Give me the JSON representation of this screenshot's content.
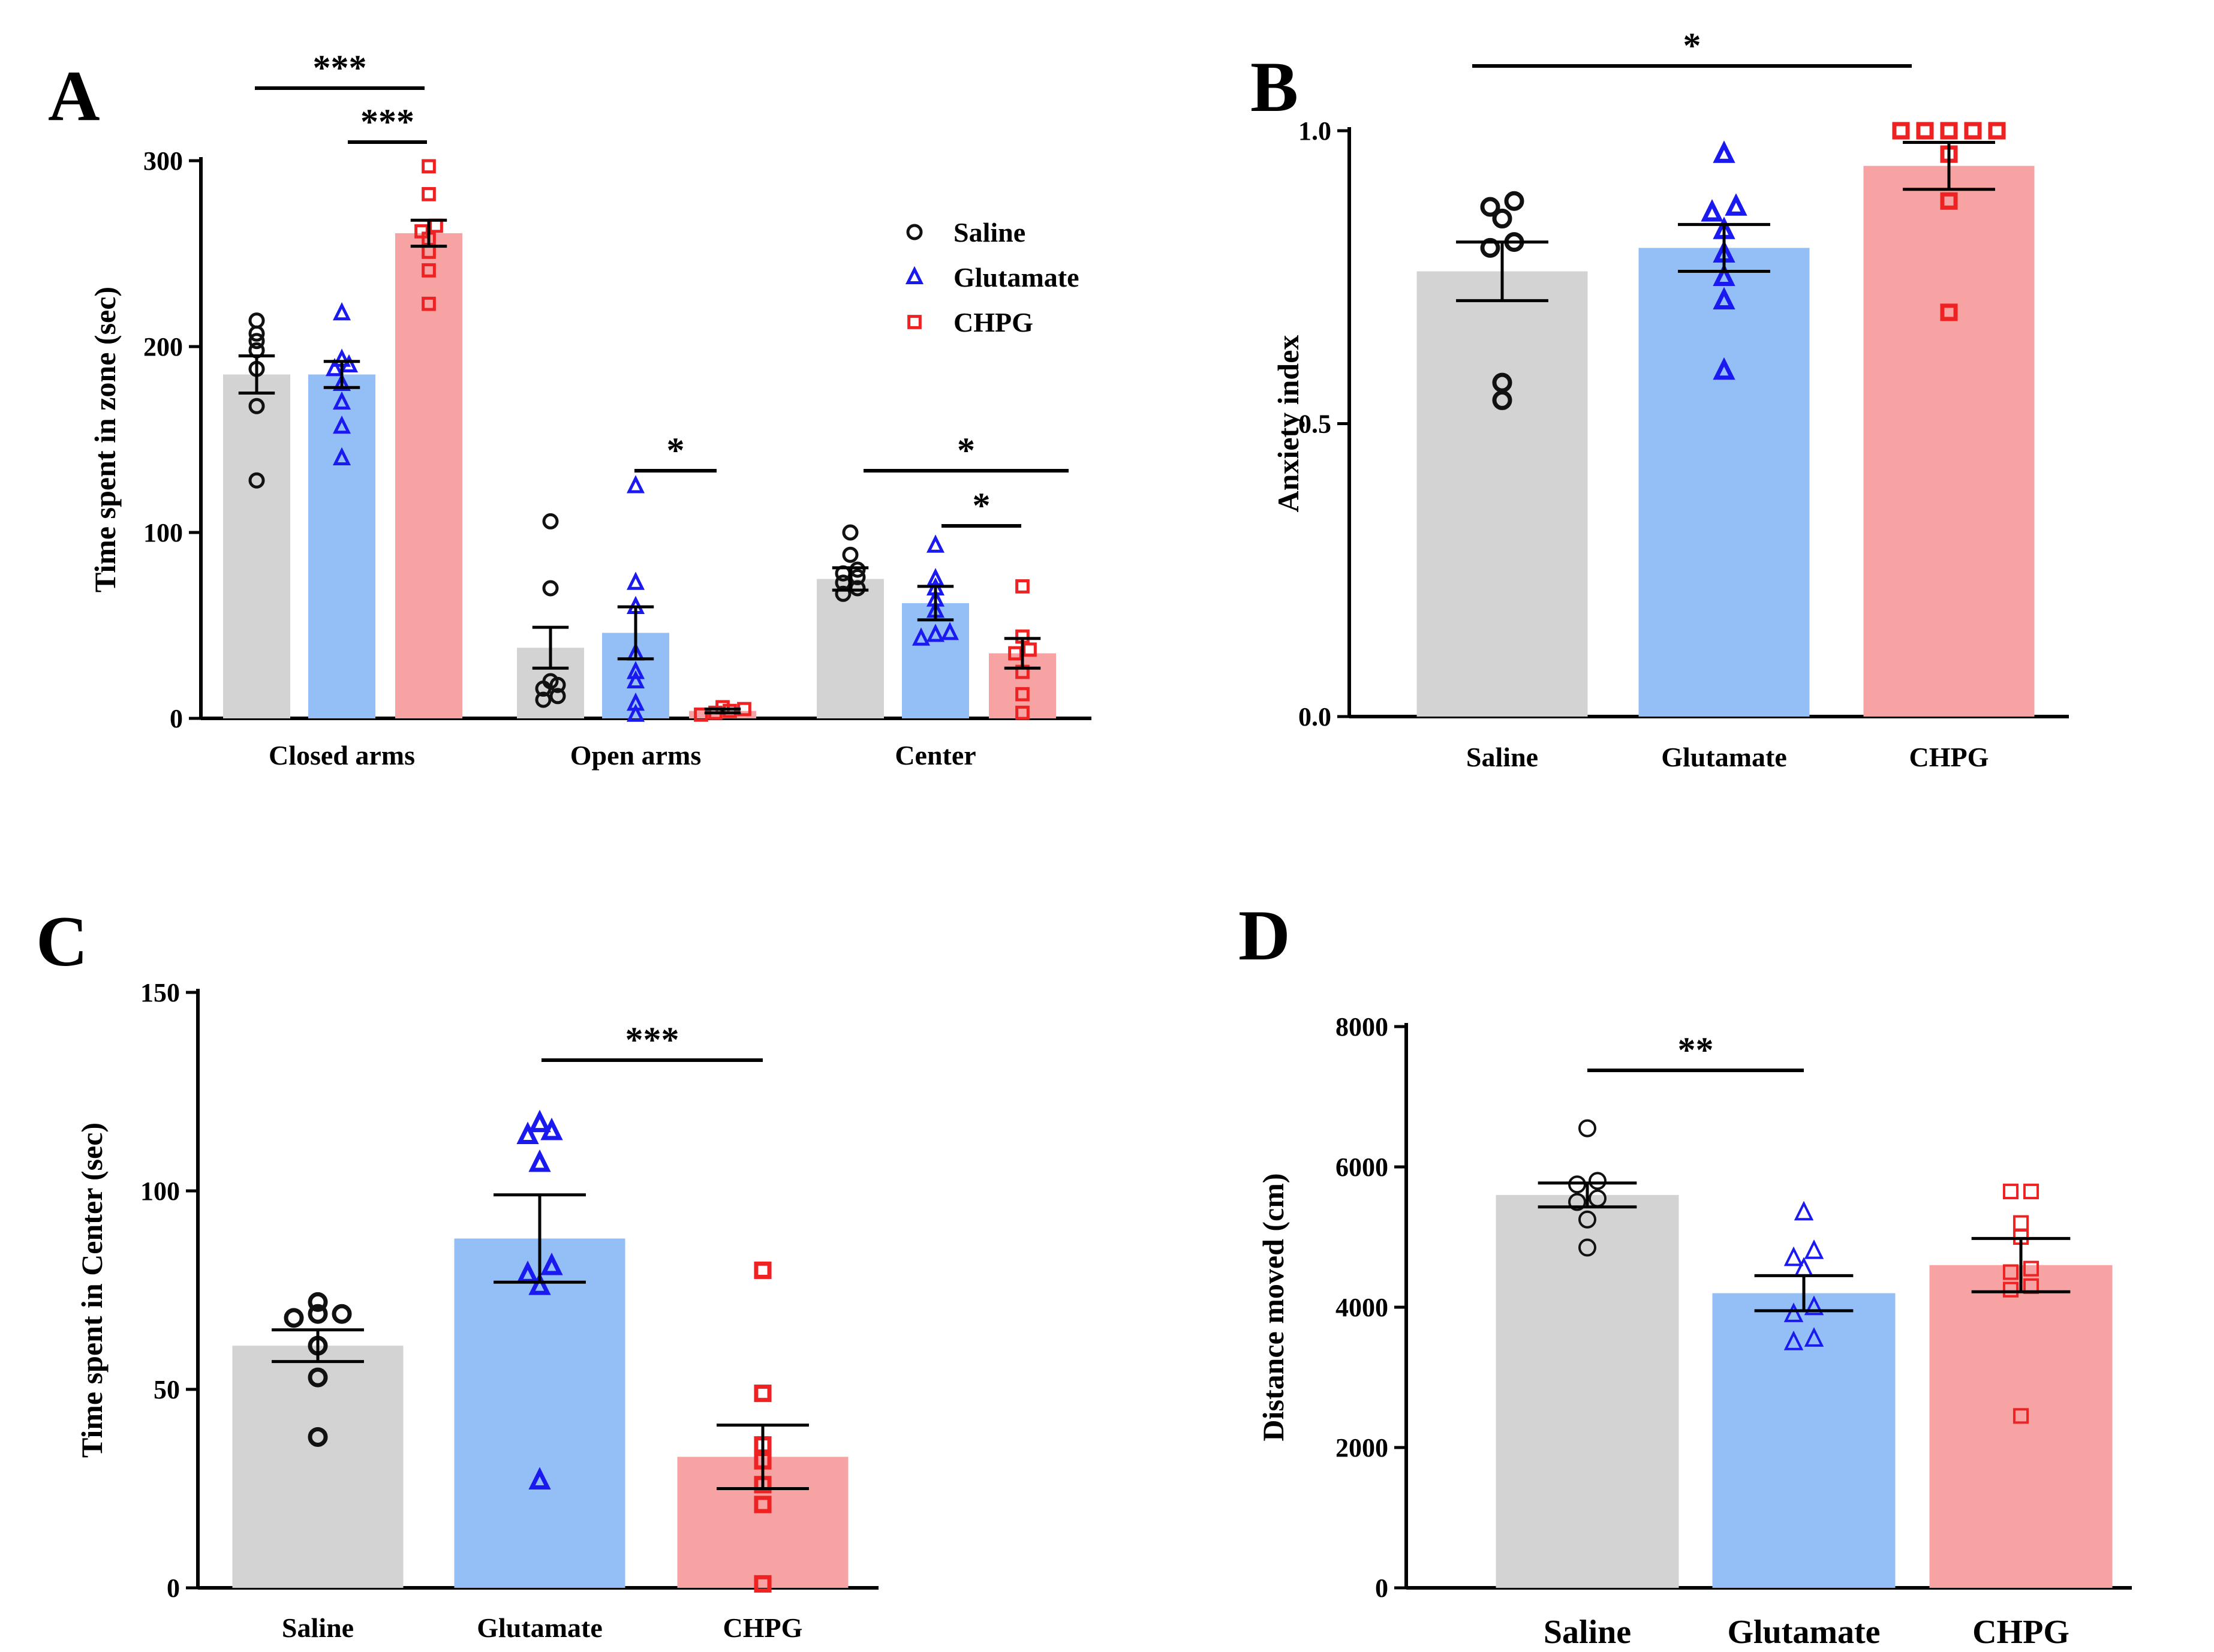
{
  "colors": {
    "Saline": {
      "fill": "#d3d3d3",
      "marker": "#111111"
    },
    "Glutamate": {
      "fill": "#93bff6",
      "marker": "#1a1af0"
    },
    "CHPG": {
      "fill": "#f8a3a3",
      "marker": "#ee2222"
    }
  },
  "chart_data": [
    {
      "panel": "A",
      "type": "bar",
      "ylabel": "Time spent in zone (sec)",
      "ylim": [
        0,
        300
      ],
      "yticks": [
        "0",
        "100",
        "200",
        "300"
      ],
      "categories": [
        "Closed arms",
        "Open arms",
        "Center"
      ],
      "legend": [
        "Saline",
        "Glutamate",
        "CHPG"
      ],
      "series": [
        {
          "name": "Saline",
          "marker": "circle",
          "values": [
            185,
            38,
            75
          ],
          "sem": [
            10,
            11,
            6
          ],
          "points": [
            [
              128,
              168,
              188,
              198,
              203,
              207,
              214
            ],
            [
              10,
              12,
              16,
              18,
              20,
              70,
              106
            ],
            [
              67,
              70,
              73,
              76,
              78,
              80,
              88,
              100
            ]
          ]
        },
        {
          "name": "Glutamate",
          "marker": "triangle",
          "values": [
            185,
            46,
            62
          ],
          "sem": [
            7,
            14,
            9
          ],
          "points": [
            [
              140,
              157,
              170,
              180,
              188,
              190,
              193,
              218
            ],
            [
              2,
              8,
              20,
              25,
              35,
              60,
              73,
              125
            ],
            [
              43,
              45,
              46,
              58,
              64,
              70,
              75,
              93
            ]
          ]
        },
        {
          "name": "CHPG",
          "marker": "square",
          "values": [
            261,
            4,
            35
          ],
          "sem": [
            7,
            1,
            8
          ],
          "points": [
            [
              223,
              241,
              251,
              258,
              262,
              265,
              282,
              297
            ],
            [
              2,
              3,
              4,
              5,
              6
            ],
            [
              3,
              13,
              25,
              35,
              37,
              44,
              71
            ]
          ]
        }
      ],
      "significance": [
        {
          "label": "***",
          "category": "Closed arms",
          "from": "Saline",
          "to": "CHPG"
        },
        {
          "label": "***",
          "category": "Closed arms",
          "from": "Glutamate",
          "to": "CHPG"
        },
        {
          "label": "*",
          "category": "Open arms",
          "from": "Glutamate",
          "to": "CHPG"
        },
        {
          "label": "*",
          "category": "Center",
          "from": "Saline",
          "to": "CHPG"
        },
        {
          "label": "*",
          "category": "Center",
          "from": "Glutamate",
          "to": "CHPG"
        }
      ]
    },
    {
      "panel": "B",
      "type": "bar",
      "ylabel": "Anxiety index",
      "ylim": [
        0,
        1
      ],
      "yticks": [
        "0.0",
        "0.5",
        "1.0"
      ],
      "categories": [
        "Saline",
        "Glutamate",
        "CHPG"
      ],
      "values": [
        0.76,
        0.8,
        0.94
      ],
      "sem": [
        0.05,
        0.04,
        0.04
      ],
      "points": [
        [
          0.54,
          0.57,
          0.8,
          0.81,
          0.85,
          0.87,
          0.88
        ],
        [
          0.59,
          0.71,
          0.75,
          0.79,
          0.83,
          0.86,
          0.87,
          0.96
        ],
        [
          0.69,
          0.88,
          0.96,
          1.0,
          1.0,
          1.0,
          1.0,
          1.0
        ]
      ],
      "significance": [
        {
          "label": "*",
          "from": "Saline",
          "to": "CHPG"
        }
      ]
    },
    {
      "panel": "C",
      "type": "bar",
      "ylabel": "Time spent in Center (sec)",
      "ylim": [
        0,
        150
      ],
      "yticks": [
        "0",
        "50",
        "100",
        "150"
      ],
      "categories": [
        "Saline",
        "Glutamate",
        "CHPG"
      ],
      "values": [
        61,
        88,
        33
      ],
      "sem": [
        4,
        11,
        8
      ],
      "points": [
        [
          38,
          53,
          61,
          68,
          69,
          69,
          72
        ],
        [
          27,
          76,
          79,
          81,
          107,
          114,
          115,
          117
        ],
        [
          1,
          21,
          26,
          32,
          36,
          49,
          80
        ]
      ],
      "significance": [
        {
          "label": "***",
          "from": "Glutamate",
          "to": "CHPG"
        }
      ]
    },
    {
      "panel": "D",
      "type": "bar",
      "ylabel": "Distance moved (cm)",
      "ylim": [
        0,
        8000
      ],
      "yticks": [
        "0",
        "2000",
        "4000",
        "6000",
        "8000"
      ],
      "categories": [
        "Saline",
        "Glutamate",
        "CHPG"
      ],
      "values": [
        5600,
        4200,
        4600
      ],
      "sem": [
        170,
        250,
        380
      ],
      "points": [
        [
          4850,
          5250,
          5500,
          5550,
          5750,
          5800,
          6550
        ],
        [
          3500,
          3550,
          3900,
          4000,
          4550,
          4700,
          4800,
          5350
        ],
        [
          2450,
          4250,
          4300,
          4500,
          4550,
          5000,
          5200,
          5650,
          5650
        ]
      ],
      "significance": [
        {
          "label": "**",
          "from": "Saline",
          "to": "Glutamate"
        }
      ]
    }
  ]
}
